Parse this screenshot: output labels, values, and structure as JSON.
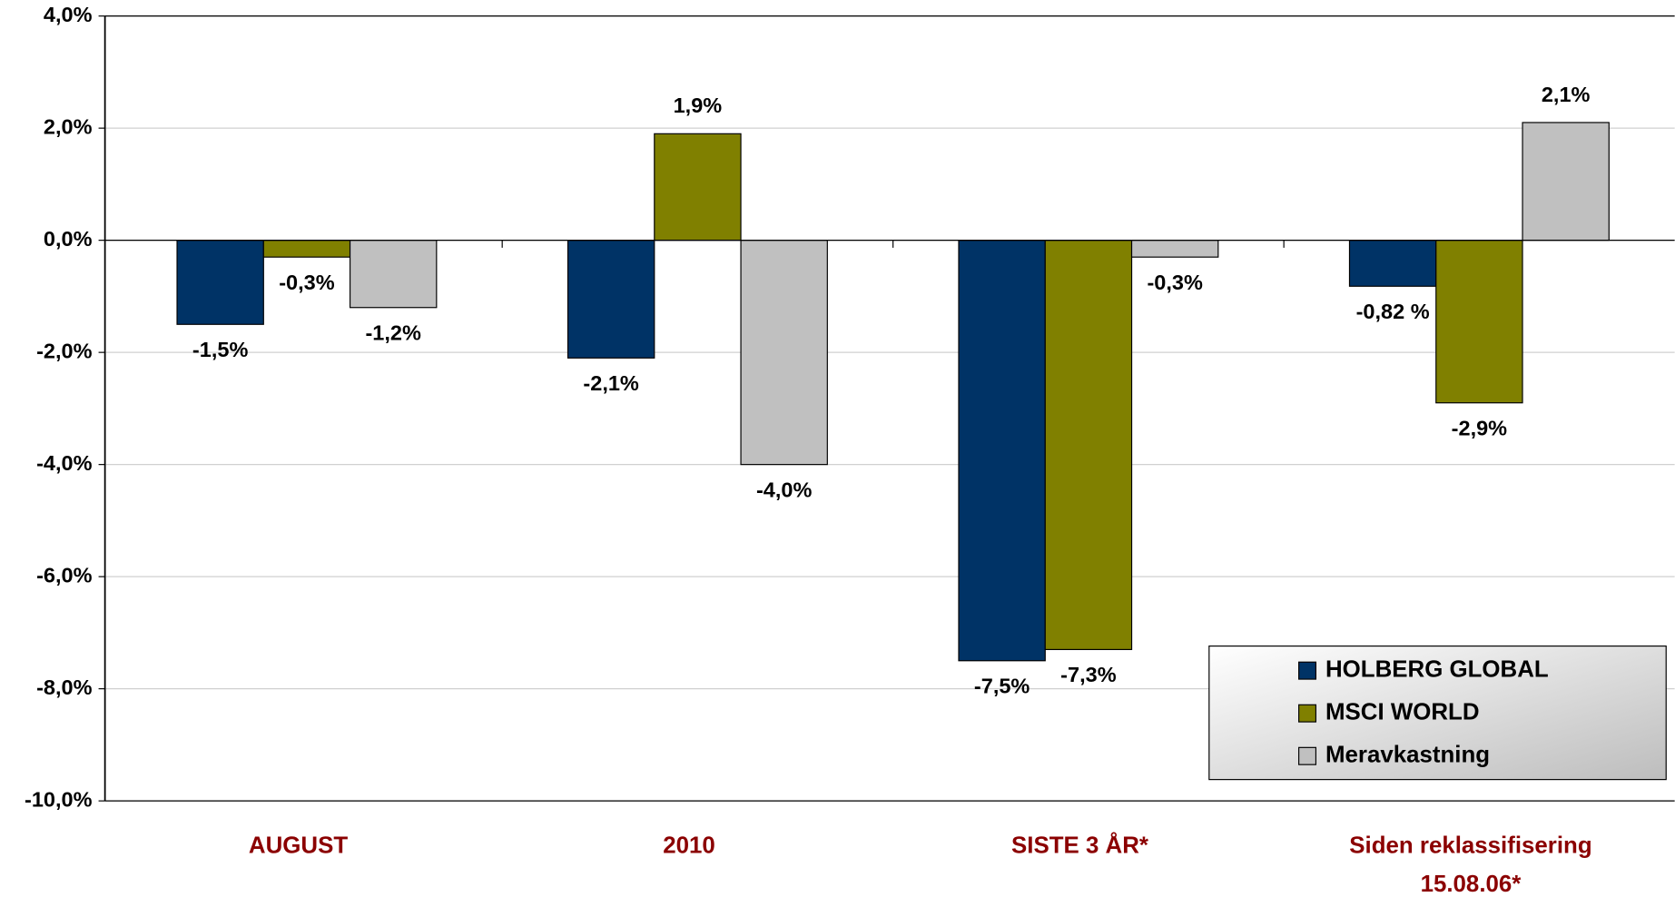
{
  "chart_data": {
    "type": "bar",
    "categories": [
      "AUGUST",
      "2010",
      "SISTE 3 ÅR*",
      "Siden reklassifisering\n15.08.06*"
    ],
    "series": [
      {
        "name": "HOLBERG GLOBAL",
        "color": "#003366",
        "values": [
          -1.5,
          -2.1,
          -7.5,
          -0.82
        ],
        "value_labels": [
          "-1,5%",
          "-2,1%",
          "-7,5%",
          "-0,82 %"
        ]
      },
      {
        "name": "MSCI WORLD",
        "color": "#808000",
        "values": [
          -0.3,
          1.9,
          -7.3,
          -2.9
        ],
        "value_labels": [
          "-0,3%",
          "1,9%",
          "-7,3%",
          "-2,9%"
        ]
      },
      {
        "name": "Meravkastning",
        "color": "#c0c0c0",
        "values": [
          -1.2,
          -4.0,
          -0.3,
          2.1
        ],
        "value_labels": [
          "-1,2%",
          "-4,0%",
          "-0,3%",
          "2,1%"
        ]
      }
    ],
    "ylim": [
      -10,
      4
    ],
    "yticks": [
      {
        "value": -10,
        "label": "-10,0%"
      },
      {
        "value": -8,
        "label": "-8,0%"
      },
      {
        "value": -6,
        "label": "-6,0%"
      },
      {
        "value": -4,
        "label": "-4,0%"
      },
      {
        "value": -2,
        "label": "-2,0%"
      },
      {
        "value": 0,
        "label": "0,0%"
      },
      {
        "value": 2,
        "label": "2,0%"
      },
      {
        "value": 4,
        "label": "4,0%"
      }
    ],
    "grid": true,
    "legend": "lower right"
  }
}
